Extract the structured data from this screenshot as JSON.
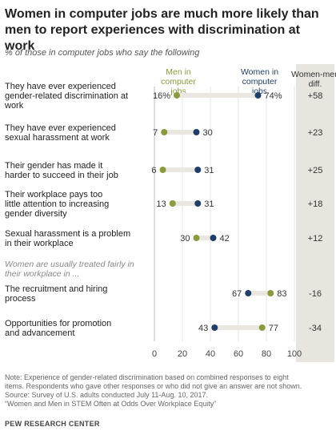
{
  "title": "Women in computer jobs are much more likely than men to report experiences with discrimination at work",
  "subtitle": "% of those in computer jobs who say the following",
  "colors": {
    "men": "#8c9a3c",
    "women": "#1f3f6b",
    "bar": "#eae7e1",
    "diff_col": "#e8e5df"
  },
  "chart_data": {
    "type": "dot",
    "xlim": [
      0,
      100
    ],
    "x_ticks": [
      "0",
      "20",
      "40",
      "60",
      "80",
      "100"
    ],
    "legend": {
      "men": "Men in computer jobs",
      "women": "Women in computer jobs"
    },
    "diff_header": "Women-men diff.",
    "section_label": "Women are usually treated fairly in their workplace in ...",
    "rows": [
      {
        "label": "They have ever experienced gender-related discrimination at work",
        "men": 16,
        "women": 74,
        "men_label": "16%",
        "women_label": "74%",
        "diff": "+58"
      },
      {
        "label": "They have ever experienced sexual harassment at work",
        "men": 7,
        "women": 30,
        "men_label": "7",
        "women_label": "30",
        "diff": "+23"
      },
      {
        "label": "Their gender has made it harder to succeed in their job",
        "men": 6,
        "women": 31,
        "men_label": "6",
        "women_label": "31",
        "diff": "+25"
      },
      {
        "label": "Their workplace pays too little attention to increasing gender diversity",
        "men": 13,
        "women": 31,
        "men_label": "13",
        "women_label": "31",
        "diff": "+18"
      },
      {
        "label": "Sexual harassment is a problem in their workplace",
        "men": 30,
        "women": 42,
        "men_label": "30",
        "women_label": "42",
        "diff": "+12"
      },
      {
        "label": "The recruitment and hiring process",
        "men": 83,
        "women": 67,
        "men_label": "83",
        "women_label": "67",
        "diff": "-16"
      },
      {
        "label": "Opportunities for promotion and advancement",
        "men": 77,
        "women": 43,
        "men_label": "77",
        "women_label": "43",
        "diff": "-34"
      }
    ]
  },
  "notes": [
    "Note: Experience of gender-related discrimination based on combined responses to eight",
    "items. Respondents who gave other responses or who did not give an answer are not shown.",
    "Source: Survey of U.S. adults conducted July 11-Aug. 10, 2017.",
    "“Women and Men in STEM Often at Odds Over Workplace Equity”"
  ],
  "source_name": "PEW RESEARCH CENTER"
}
